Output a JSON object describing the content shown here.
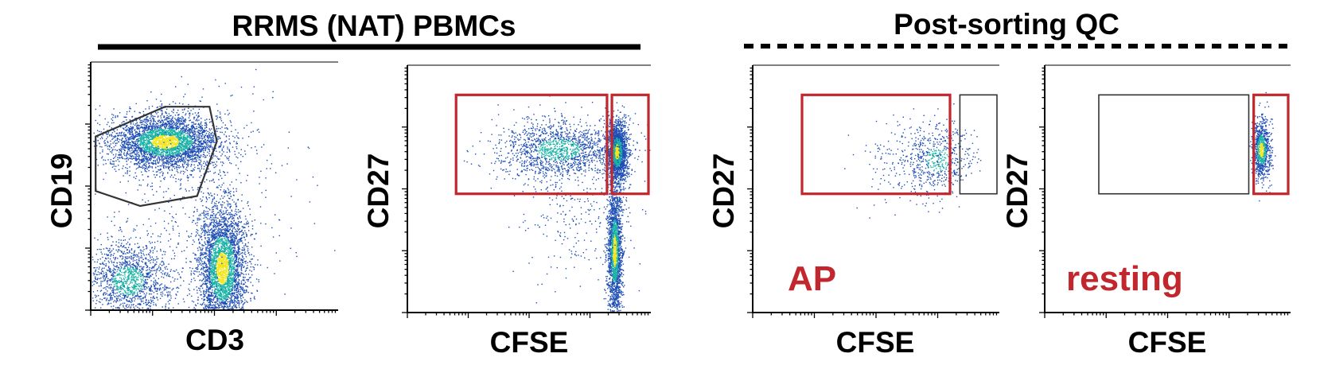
{
  "headers": {
    "left": "RRMS (NAT) PBMCs",
    "right": "Post-sorting QC"
  },
  "colors": {
    "gate_red": "#c1272d",
    "gate_black": "#333333",
    "density_low": "#1f4fb5",
    "density_mid": "#19b3a6",
    "density_high": "#f2e51d"
  },
  "chart_data": [
    {
      "type": "scatter",
      "subtype": "flow-cytometry-density-plot",
      "xlabel": "CD3",
      "ylabel": "CD19",
      "populations": [
        {
          "center": [
            0.3,
            0.68
          ],
          "spread": [
            0.11,
            0.055
          ],
          "count": 3600,
          "level": "high"
        },
        {
          "center": [
            0.53,
            0.17
          ],
          "spread": [
            0.05,
            0.13
          ],
          "count": 3600,
          "level": "high"
        },
        {
          "center": [
            0.15,
            0.12
          ],
          "spread": [
            0.09,
            0.08
          ],
          "count": 1400,
          "level": "mid"
        },
        {
          "center": [
            0.4,
            0.45
          ],
          "spread": [
            0.2,
            0.25
          ],
          "count": 500,
          "level": "low"
        }
      ],
      "gates": [
        {
          "shape": "polygon",
          "color": "gate_black",
          "points": [
            [
              0.02,
              0.7
            ],
            [
              0.3,
              0.82
            ],
            [
              0.48,
              0.82
            ],
            [
              0.51,
              0.68
            ],
            [
              0.43,
              0.46
            ],
            [
              0.2,
              0.42
            ],
            [
              0.02,
              0.48
            ]
          ]
        }
      ]
    },
    {
      "type": "scatter",
      "subtype": "flow-cytometry-density-plot",
      "xlabel": "CFSE",
      "ylabel": "CD27",
      "populations": [
        {
          "center": [
            0.86,
            0.65
          ],
          "spread": [
            0.02,
            0.06
          ],
          "count": 2200,
          "level": "high"
        },
        {
          "center": [
            0.85,
            0.25
          ],
          "spread": [
            0.015,
            0.13
          ],
          "count": 2000,
          "level": "high"
        },
        {
          "center": [
            0.62,
            0.66
          ],
          "spread": [
            0.13,
            0.06
          ],
          "count": 1500,
          "level": "mid"
        },
        {
          "center": [
            0.7,
            0.4
          ],
          "spread": [
            0.12,
            0.16
          ],
          "count": 300,
          "level": "low"
        }
      ],
      "gates": [
        {
          "shape": "rect",
          "color": "gate_red",
          "x": [
            0.2,
            0.82
          ],
          "y": [
            0.48,
            0.88
          ]
        },
        {
          "shape": "rect",
          "color": "gate_red",
          "x": [
            0.84,
            1.0
          ],
          "y": [
            0.48,
            0.88
          ]
        }
      ]
    },
    {
      "type": "scatter",
      "subtype": "flow-cytometry-density-plot",
      "xlabel": "CFSE",
      "ylabel": "CD27",
      "gate_label": "AP",
      "populations": [
        {
          "center": [
            0.75,
            0.62
          ],
          "spread": [
            0.07,
            0.07
          ],
          "count": 500,
          "level": "mid"
        },
        {
          "center": [
            0.63,
            0.62
          ],
          "spread": [
            0.09,
            0.09
          ],
          "count": 200,
          "level": "low"
        }
      ],
      "gates": [
        {
          "shape": "rect",
          "color": "gate_red",
          "x": [
            0.2,
            0.8
          ],
          "y": [
            0.48,
            0.88
          ]
        },
        {
          "shape": "rect",
          "color": "gate_black",
          "x": [
            0.84,
            1.0
          ],
          "y": [
            0.48,
            0.88
          ]
        }
      ]
    },
    {
      "type": "scatter",
      "subtype": "flow-cytometry-density-plot",
      "xlabel": "CFSE",
      "ylabel": "CD27",
      "gate_label": "resting",
      "populations": [
        {
          "center": [
            0.88,
            0.66
          ],
          "spread": [
            0.018,
            0.06
          ],
          "count": 900,
          "level": "high"
        }
      ],
      "gates": [
        {
          "shape": "rect",
          "color": "gate_black",
          "x": [
            0.22,
            0.83
          ],
          "y": [
            0.48,
            0.88
          ]
        },
        {
          "shape": "rect",
          "color": "gate_red",
          "x": [
            0.85,
            1.0
          ],
          "y": [
            0.48,
            0.88
          ]
        }
      ]
    }
  ]
}
